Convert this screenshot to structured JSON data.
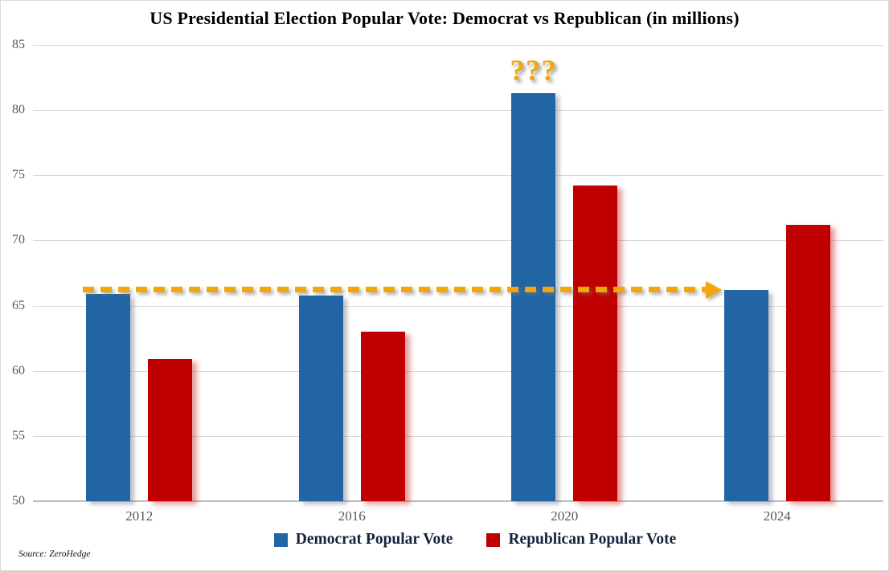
{
  "title": "US Presidential Election Popular Vote: Democrat vs Republican (in millions)",
  "source_note": "Source: ZeroHedge",
  "chart_data": {
    "type": "bar",
    "title": "US Presidential Election Popular Vote: Democrat vs Republican (in millions)",
    "categories": [
      "2012",
      "2016",
      "2020",
      "2024"
    ],
    "series": [
      {
        "name": "Democrat Popular Vote",
        "color": "#2265A5",
        "values": [
          65.9,
          65.8,
          81.3,
          66.2
        ]
      },
      {
        "name": "Republican Popular Vote",
        "color": "#C00000",
        "values": [
          60.9,
          63.0,
          74.2,
          71.2
        ]
      }
    ],
    "ylim": [
      50,
      85
    ],
    "yticks": [
      85,
      80,
      75,
      70,
      65,
      60,
      55,
      50
    ],
    "grid": true,
    "legend_position": "bottom",
    "annotations": [
      {
        "id": "question-marks",
        "text": "???",
        "anchor": "2020-democrat-bar",
        "color": "#F2A60C"
      },
      {
        "id": "dashed-arrow",
        "type": "horizontal-dashed-arrow",
        "y_value": 66.2,
        "span": "from 2012 democrat bar to 2024 democrat bar",
        "color": "#F2A60C"
      }
    ],
    "colors": {
      "democrat": "#2265A5",
      "republican": "#C00000",
      "accent_orange": "#F2A60C",
      "gridline": "#D9D9D9",
      "axis_line": "#BFBFBF",
      "tick_label": "#595959",
      "legend_text": "#14233C",
      "title_text": "#000000"
    }
  }
}
